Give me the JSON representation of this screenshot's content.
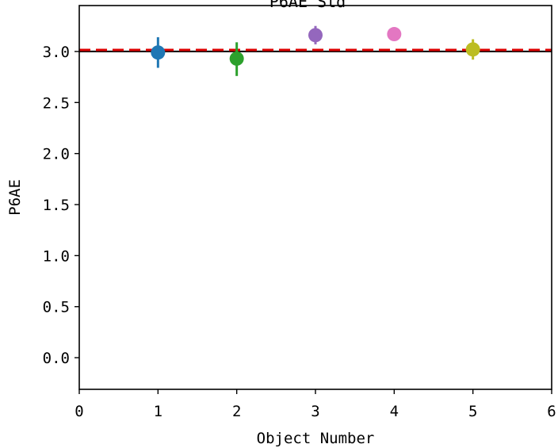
{
  "chart_data": {
    "type": "scatter",
    "title": "P6AE Std",
    "xlabel": "Object Number",
    "ylabel": "P6AE",
    "xlim": [
      0,
      6
    ],
    "ylim": [
      -0.31,
      3.45
    ],
    "x_ticks": [
      0,
      1,
      2,
      3,
      4,
      5,
      6
    ],
    "x_tick_labels": [
      "0",
      "1",
      "2",
      "3",
      "4",
      "5",
      "6"
    ],
    "y_ticks": [
      0.0,
      0.5,
      1.0,
      1.5,
      2.0,
      2.5,
      3.0
    ],
    "y_tick_labels": [
      "0.0",
      "0.5",
      "1.0",
      "1.5",
      "2.0",
      "2.5",
      "3.0"
    ],
    "grid": false,
    "points": [
      {
        "x": 1,
        "y": 2.99,
        "err_low": 2.84,
        "err_high": 3.14,
        "color": "#1f77b4"
      },
      {
        "x": 2,
        "y": 2.93,
        "err_low": 2.76,
        "err_high": 3.09,
        "color": "#2ca02c"
      },
      {
        "x": 3,
        "y": 3.16,
        "err_low": 3.07,
        "err_high": 3.25,
        "color": "#9467bd"
      },
      {
        "x": 4,
        "y": 3.17,
        "err_low": 3.17,
        "err_high": 3.17,
        "color": "#e377c2"
      },
      {
        "x": 5,
        "y": 3.02,
        "err_low": 2.92,
        "err_high": 3.12,
        "color": "#bcbd22"
      }
    ],
    "reference_lines": [
      {
        "y": 3.0,
        "style": "solid",
        "color": "#000000"
      },
      {
        "y": 3.015,
        "style": "dashed",
        "color": "#dd0000"
      }
    ]
  }
}
